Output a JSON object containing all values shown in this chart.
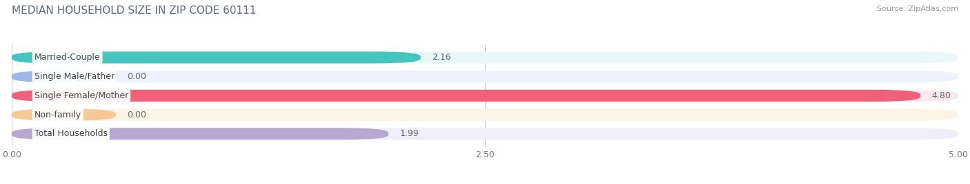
{
  "title": "MEDIAN HOUSEHOLD SIZE IN ZIP CODE 60111",
  "source": "Source: ZipAtlas.com",
  "categories": [
    "Married-Couple",
    "Single Male/Father",
    "Single Female/Mother",
    "Non-family",
    "Total Households"
  ],
  "values": [
    2.16,
    0.0,
    4.8,
    0.0,
    1.99
  ],
  "bar_colors": [
    "#45C4C0",
    "#9BB8E8",
    "#F0607A",
    "#F5C896",
    "#B8A8D0"
  ],
  "bar_bg_colors": [
    "#E8F8F8",
    "#EEF2FC",
    "#FDE8F0",
    "#FDF4E8",
    "#F0EEF8"
  ],
  "xlim": [
    0,
    5.0
  ],
  "xticks": [
    0.0,
    2.5,
    5.0
  ],
  "xlabel_fontsize": 9,
  "title_fontsize": 11,
  "value_fontsize": 9,
  "label_fontsize": 9,
  "background_color": "#FFFFFF",
  "bar_height": 0.62,
  "bar_rounding": 0.25
}
